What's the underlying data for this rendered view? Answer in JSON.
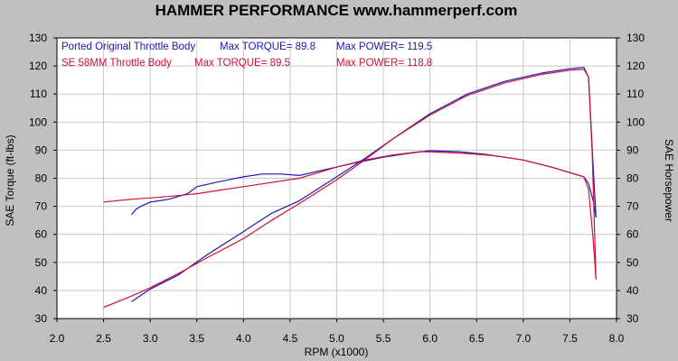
{
  "chart_data": {
    "type": "line",
    "title": "HAMMER PERFORMANCE www.hammerperf.com",
    "xlabel": "RPM (x1000)",
    "ylabel_left": "SAE Torque (ft-lbs)",
    "ylabel_right": "SAE Horsepower",
    "xlim": [
      2.0,
      8.0
    ],
    "ylim": [
      30,
      130
    ],
    "x_ticks": [
      "2.0",
      "2.5",
      "3.0",
      "3.5",
      "4.0",
      "4.5",
      "5.0",
      "5.5",
      "6.0",
      "6.5",
      "7.0",
      "7.5",
      "8.0"
    ],
    "y_ticks": [
      "30",
      "40",
      "50",
      "60",
      "70",
      "80",
      "90",
      "100",
      "110",
      "120",
      "130"
    ],
    "grid": true,
    "legend": [
      {
        "run": "Ported Original Throttle Body",
        "torque": "Max TORQUE= 89.8",
        "power": "Max POWER= 119.5",
        "color": "#1a1ab4"
      },
      {
        "run": "SE 58MM Throttle Body",
        "torque": "Max TORQUE= 89.5",
        "power": "Max POWER= 118.8",
        "color": "#d0103a"
      }
    ],
    "series": [
      {
        "name": "Ported Original Throttle Body",
        "measure": "torque",
        "color": "#1a1ab4",
        "x": [
          2.8,
          2.85,
          2.9,
          3.0,
          3.2,
          3.4,
          3.5,
          3.7,
          4.0,
          4.2,
          4.4,
          4.6,
          4.8,
          5.0,
          5.2,
          5.5,
          5.8,
          6.0,
          6.3,
          6.6,
          7.0,
          7.3,
          7.5,
          7.65,
          7.7,
          7.75,
          7.78
        ],
        "y": [
          67,
          69,
          70,
          71.5,
          72.5,
          74.5,
          77,
          78.5,
          80.5,
          81.5,
          81.5,
          81,
          82.5,
          84,
          85.5,
          87.5,
          89,
          89.8,
          89.5,
          88.5,
          86.5,
          84,
          82,
          80.5,
          78,
          72,
          66
        ]
      },
      {
        "name": "SE 58MM Throttle Body",
        "measure": "torque",
        "color": "#d0103a",
        "x": [
          2.5,
          2.8,
          3.0,
          3.2,
          3.5,
          3.8,
          4.0,
          4.3,
          4.6,
          4.8,
          5.0,
          5.3,
          5.6,
          5.9,
          6.1,
          6.4,
          6.7,
          7.0,
          7.3,
          7.5,
          7.65,
          7.7,
          7.75,
          7.78
        ],
        "y": [
          71.5,
          72.5,
          73,
          73.5,
          74.5,
          76,
          77,
          78.5,
          80,
          82,
          84,
          86.5,
          88.3,
          89.5,
          89.3,
          88.8,
          88,
          86.5,
          84,
          82,
          80.5,
          76,
          58,
          44
        ]
      },
      {
        "name": "Ported Original Throttle Body",
        "measure": "power",
        "color": "#1a1ab4",
        "x": [
          2.8,
          3.0,
          3.3,
          3.6,
          4.0,
          4.3,
          4.6,
          5.0,
          5.3,
          5.6,
          6.0,
          6.4,
          6.8,
          7.2,
          7.5,
          7.65,
          7.7,
          7.74,
          7.78
        ],
        "y": [
          36,
          40.5,
          45.5,
          52.5,
          61,
          67.5,
          72,
          80.5,
          87,
          94,
          103,
          110,
          114.5,
          117.5,
          119,
          119.5,
          116,
          90,
          66
        ]
      },
      {
        "name": "SE 58MM Throttle Body",
        "measure": "power",
        "color": "#d0103a",
        "x": [
          2.5,
          2.8,
          3.0,
          3.3,
          3.6,
          4.0,
          4.3,
          4.6,
          5.0,
          5.3,
          5.6,
          6.0,
          6.4,
          6.8,
          7.2,
          7.5,
          7.65,
          7.7,
          7.74,
          7.78
        ],
        "y": [
          34,
          38,
          41,
          46,
          51.5,
          58.5,
          65,
          71,
          79.5,
          86.5,
          94,
          102.5,
          109.5,
          114,
          117,
          118.5,
          118.8,
          116,
          88,
          44
        ]
      }
    ]
  }
}
